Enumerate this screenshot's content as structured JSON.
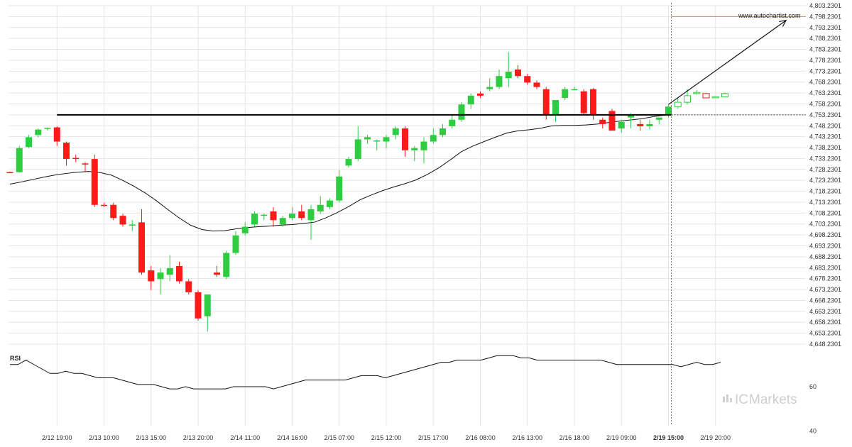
{
  "chart_data": {
    "type": "candlestick",
    "watermark": "www.autochartist.com",
    "brand": {
      "ic": "IC",
      "name": "Markets"
    },
    "rsi_label": "RSI",
    "colors": {
      "up": "#2ecc40",
      "down": "#ff1a1a",
      "ma": "#111111",
      "support": "#000000",
      "target": "#d98b33",
      "grid": "#e5e5e5",
      "rsi": "#111111",
      "arrow": "#111111",
      "forecast": "#ffffff"
    },
    "y_ticks": [
      "4,803.2301",
      "4,798.2301",
      "4,793.2301",
      "4,788.2301",
      "4,783.2301",
      "4,778.2301",
      "4,773.2301",
      "4,768.2301",
      "4,763.2301",
      "4,758.2301",
      "4,753.2301",
      "4,748.2301",
      "4,743.2301",
      "4,738.2301",
      "4,733.2301",
      "4,728.2301",
      "4,723.2301",
      "4,718.2301",
      "4,713.2301",
      "4,708.2301",
      "4,703.2301",
      "4,698.2301",
      "4,693.2301",
      "4,688.2301",
      "4,683.2301",
      "4,678.2301",
      "4,673.2301",
      "4,668.2301",
      "4,663.2301",
      "4,658.2301",
      "4,653.2301",
      "4,648.2301"
    ],
    "ylim": [
      4648.2301,
      4803.2301
    ],
    "x_ticks": [
      {
        "label": "2/12 19:00",
        "bar": 5
      },
      {
        "label": "2/13 10:00",
        "bar": 10
      },
      {
        "label": "2/13 15:00",
        "bar": 15
      },
      {
        "label": "2/13 20:00",
        "bar": 20
      },
      {
        "label": "2/14 11:00",
        "bar": 25
      },
      {
        "label": "2/14 16:00",
        "bar": 30
      },
      {
        "label": "2/15 07:00",
        "bar": 35
      },
      {
        "label": "2/15 12:00",
        "bar": 40
      },
      {
        "label": "2/15 17:00",
        "bar": 45
      },
      {
        "label": "2/16 08:00",
        "bar": 50
      },
      {
        "label": "2/16 13:00",
        "bar": 55
      },
      {
        "label": "2/16 18:00",
        "bar": 60
      },
      {
        "label": "2/19 09:00",
        "bar": 65
      },
      {
        "label": "2/19 15:00",
        "bar": 70,
        "bold": true
      },
      {
        "label": "2/19 20:00",
        "bar": 75
      }
    ],
    "candles": [
      {
        "o": 4727.0,
        "h": 4727.2,
        "l": 4726.5,
        "c": 4726.6
      },
      {
        "o": 4727.0,
        "h": 4739.0,
        "l": 4726.8,
        "c": 4738.0
      },
      {
        "o": 4738.5,
        "h": 4744.0,
        "l": 4738.0,
        "c": 4743.0
      },
      {
        "o": 4744.0,
        "h": 4747.0,
        "l": 4743.0,
        "c": 4746.5
      },
      {
        "o": 4746.8,
        "h": 4747.5,
        "l": 4746.0,
        "c": 4747.3
      },
      {
        "o": 4747.5,
        "h": 4748.0,
        "l": 4739.0,
        "c": 4741.0
      },
      {
        "o": 4740.5,
        "h": 4741.0,
        "l": 4730.0,
        "c": 4733.0
      },
      {
        "o": 4733.5,
        "h": 4735.0,
        "l": 4731.5,
        "c": 4733.0
      },
      {
        "o": 4731.0,
        "h": 4731.5,
        "l": 4727.0,
        "c": 4730.5
      },
      {
        "o": 4733.0,
        "h": 4735.0,
        "l": 4711.0,
        "c": 4712.0
      },
      {
        "o": 4712.0,
        "h": 4713.0,
        "l": 4711.0,
        "c": 4711.5
      },
      {
        "o": 4712.0,
        "h": 4713.0,
        "l": 4705.0,
        "c": 4706.0
      },
      {
        "o": 4707.0,
        "h": 4708.0,
        "l": 4702.0,
        "c": 4703.0
      },
      {
        "o": 4703.0,
        "h": 4705.0,
        "l": 4700.0,
        "c": 4703.0
      },
      {
        "o": 4704.0,
        "h": 4710.0,
        "l": 4680.0,
        "c": 4681.0
      },
      {
        "o": 4682.0,
        "h": 4684.0,
        "l": 4673.0,
        "c": 4677.0
      },
      {
        "o": 4678.0,
        "h": 4683.0,
        "l": 4671.0,
        "c": 4681.0
      },
      {
        "o": 4680.0,
        "h": 4689.0,
        "l": 4677.0,
        "c": 4683.0
      },
      {
        "o": 4684.0,
        "h": 4686.0,
        "l": 4676.0,
        "c": 4677.0
      },
      {
        "o": 4677.0,
        "h": 4678.0,
        "l": 4671.0,
        "c": 4672.0
      },
      {
        "o": 4672.0,
        "h": 4673.0,
        "l": 4659.0,
        "c": 4660.0
      },
      {
        "o": 4661.0,
        "h": 4671.0,
        "l": 4654.0,
        "c": 4671.0
      },
      {
        "o": 4681.0,
        "h": 4684.0,
        "l": 4679.0,
        "c": 4680.0
      },
      {
        "o": 4679.0,
        "h": 4691.0,
        "l": 4678.0,
        "c": 4690.0
      },
      {
        "o": 4690.0,
        "h": 4700.0,
        "l": 4689.0,
        "c": 4698.0
      },
      {
        "o": 4699.0,
        "h": 4704.0,
        "l": 4698.0,
        "c": 4702.0
      },
      {
        "o": 4703.0,
        "h": 4709.0,
        "l": 4702.0,
        "c": 4708.0
      },
      {
        "o": 4707.0,
        "h": 4708.0,
        "l": 4705.0,
        "c": 4707.5
      },
      {
        "o": 4709.0,
        "h": 4711.0,
        "l": 4702.0,
        "c": 4705.0
      },
      {
        "o": 4703.0,
        "h": 4707.0,
        "l": 4702.0,
        "c": 4706.0
      },
      {
        "o": 4706.0,
        "h": 4711.0,
        "l": 4705.0,
        "c": 4708.0
      },
      {
        "o": 4709.0,
        "h": 4712.0,
        "l": 4705.0,
        "c": 4706.0
      },
      {
        "o": 4705.0,
        "h": 4712.0,
        "l": 4696.0,
        "c": 4710.0
      },
      {
        "o": 4709.0,
        "h": 4716.0,
        "l": 4708.0,
        "c": 4712.0
      },
      {
        "o": 4711.0,
        "h": 4715.0,
        "l": 4710.0,
        "c": 4714.0
      },
      {
        "o": 4714.0,
        "h": 4728.0,
        "l": 4713.0,
        "c": 4725.0
      },
      {
        "o": 4730.0,
        "h": 4734.0,
        "l": 4729.0,
        "c": 4733.0
      },
      {
        "o": 4733.0,
        "h": 4748.0,
        "l": 4732.0,
        "c": 4742.0
      },
      {
        "o": 4742.0,
        "h": 4744.0,
        "l": 4740.0,
        "c": 4743.0
      },
      {
        "o": 4741.0,
        "h": 4742.0,
        "l": 4737.0,
        "c": 4741.5
      },
      {
        "o": 4741.0,
        "h": 4744.0,
        "l": 4738.0,
        "c": 4743.0
      },
      {
        "o": 4744.0,
        "h": 4748.0,
        "l": 4742.0,
        "c": 4747.0
      },
      {
        "o": 4747.0,
        "h": 4748.0,
        "l": 4734.0,
        "c": 4737.0
      },
      {
        "o": 4737.0,
        "h": 4739.0,
        "l": 4732.0,
        "c": 4738.0
      },
      {
        "o": 4737.0,
        "h": 4743.0,
        "l": 4731.0,
        "c": 4741.0
      },
      {
        "o": 4741.0,
        "h": 4747.0,
        "l": 4740.0,
        "c": 4744.0
      },
      {
        "o": 4744.0,
        "h": 4749.0,
        "l": 4743.0,
        "c": 4747.0
      },
      {
        "o": 4748.0,
        "h": 4753.0,
        "l": 4747.0,
        "c": 4751.0
      },
      {
        "o": 4751.0,
        "h": 4759.0,
        "l": 4750.0,
        "c": 4758.0
      },
      {
        "o": 4758.0,
        "h": 4763.0,
        "l": 4756.0,
        "c": 4762.0
      },
      {
        "o": 4763.0,
        "h": 4764.0,
        "l": 4761.0,
        "c": 4762.0
      },
      {
        "o": 4765.0,
        "h": 4770.0,
        "l": 4764.0,
        "c": 4766.0
      },
      {
        "o": 4766.0,
        "h": 4774.0,
        "l": 4765.0,
        "c": 4771.0
      },
      {
        "o": 4770.0,
        "h": 4782.0,
        "l": 4766.0,
        "c": 4773.0
      },
      {
        "o": 4774.0,
        "h": 4776.0,
        "l": 4770.0,
        "c": 4771.0
      },
      {
        "o": 4771.0,
        "h": 4772.0,
        "l": 4767.0,
        "c": 4768.0
      },
      {
        "o": 4768.0,
        "h": 4769.0,
        "l": 4765.0,
        "c": 4766.0
      },
      {
        "o": 4765.0,
        "h": 4766.0,
        "l": 4751.0,
        "c": 4753.0
      },
      {
        "o": 4753.0,
        "h": 4760.0,
        "l": 4750.0,
        "c": 4760.0
      },
      {
        "o": 4761.0,
        "h": 4766.0,
        "l": 4760.0,
        "c": 4765.0
      },
      {
        "o": 4765.0,
        "h": 4766.0,
        "l": 4764.5,
        "c": 4765.0
      },
      {
        "o": 4764.0,
        "h": 4765.0,
        "l": 4753.0,
        "c": 4754.0
      },
      {
        "o": 4765.0,
        "h": 4765.5,
        "l": 4751.0,
        "c": 4753.0
      },
      {
        "o": 4751.0,
        "h": 4752.0,
        "l": 4747.0,
        "c": 4749.0
      },
      {
        "o": 4755.0,
        "h": 4756.0,
        "l": 4746.0,
        "c": 4746.0
      },
      {
        "o": 4747.0,
        "h": 4751.0,
        "l": 4745.0,
        "c": 4750.0
      },
      {
        "o": 4752.0,
        "h": 4754.0,
        "l": 4747.0,
        "c": 4753.0
      },
      {
        "o": 4749.0,
        "h": 4751.0,
        "l": 4746.0,
        "c": 4748.0
      },
      {
        "o": 4748.0,
        "h": 4751.0,
        "l": 4746.5,
        "c": 4749.0
      },
      {
        "o": 4751.0,
        "h": 4752.0,
        "l": 4749.0,
        "c": 4752.0
      },
      {
        "o": 4753.0,
        "h": 4758.0,
        "l": 4752.0,
        "c": 4757.0
      }
    ],
    "forecast_candles": [
      {
        "o": 4757.0,
        "h": 4761.0,
        "l": 4756.0,
        "c": 4759.0
      },
      {
        "o": 4759.0,
        "h": 4765.0,
        "l": 4758.0,
        "c": 4762.0
      },
      {
        "o": 4763.5,
        "h": 4764.5,
        "l": 4762.5,
        "c": 4763.5
      },
      {
        "o": 4763.0,
        "h": 4763.3,
        "l": 4761.0,
        "c": 4761.0
      },
      {
        "o": 4761.5,
        "h": 4761.7,
        "l": 4761.2,
        "c": 4761.5
      },
      {
        "o": 4761.5,
        "h": 4763.5,
        "l": 4761.5,
        "c": 4763.0
      }
    ],
    "moving_average": [
      4721.5,
      4722.5,
      4723.6,
      4724.7,
      4725.7,
      4726.4,
      4727.0,
      4727.3,
      4726.8,
      4725.6,
      4723.2,
      4720.5,
      4717.4,
      4713.8,
      4709.8,
      4706.0,
      4702.7,
      4700.7,
      4700.0,
      4700.2,
      4701.0,
      4701.6,
      4702.0,
      4702.3,
      4702.7,
      4703.0,
      4703.5,
      4704.1,
      4706.1,
      4708.5,
      4711.2,
      4714.3,
      4716.5,
      4718.5,
      4720.2,
      4721.7,
      4723.5,
      4726.0,
      4729.0,
      4732.6,
      4736.4,
      4738.9,
      4741.0,
      4743.0,
      4744.9,
      4745.9,
      4746.4,
      4747.1,
      4748.2,
      4748.4,
      4748.4,
      4748.6,
      4749.0,
      4749.7,
      4750.4,
      4750.9,
      4751.5,
      4752.4,
      4753.1
    ],
    "moving_average_start": 0,
    "moving_average_step": 1.2,
    "support_level": 4753.2301,
    "support_from_bar": 5,
    "target_level": 4798.2301,
    "target_from_bar": 70,
    "arrow": {
      "from": {
        "bar": 70,
        "price": 4758.0
      },
      "to": {
        "bar": 82.5,
        "price": 4796.5
      }
    },
    "forecast_start_bar": 70,
    "rsi": {
      "ticks": [
        "60",
        "40"
      ],
      "ylim": [
        36,
        84
      ],
      "values": [
        70,
        70,
        72,
        70,
        68,
        66,
        66,
        67,
        66,
        66,
        65,
        64,
        64,
        64,
        63,
        62,
        61,
        61,
        61,
        60,
        59,
        59,
        60,
        59,
        59,
        59,
        59,
        59,
        60,
        60,
        60,
        60,
        60,
        59,
        60,
        61,
        62,
        63,
        63,
        63,
        63,
        63,
        63,
        64,
        65,
        65,
        65,
        64,
        65,
        66,
        67,
        68,
        69,
        70,
        71,
        71,
        72,
        72,
        72,
        72,
        73,
        74,
        74,
        74,
        73,
        73,
        72,
        72,
        72,
        72,
        72,
        72,
        72,
        72,
        72,
        71,
        70,
        70,
        70,
        70,
        70,
        70,
        70,
        70,
        69,
        70,
        71,
        70,
        70,
        71
      ]
    }
  }
}
